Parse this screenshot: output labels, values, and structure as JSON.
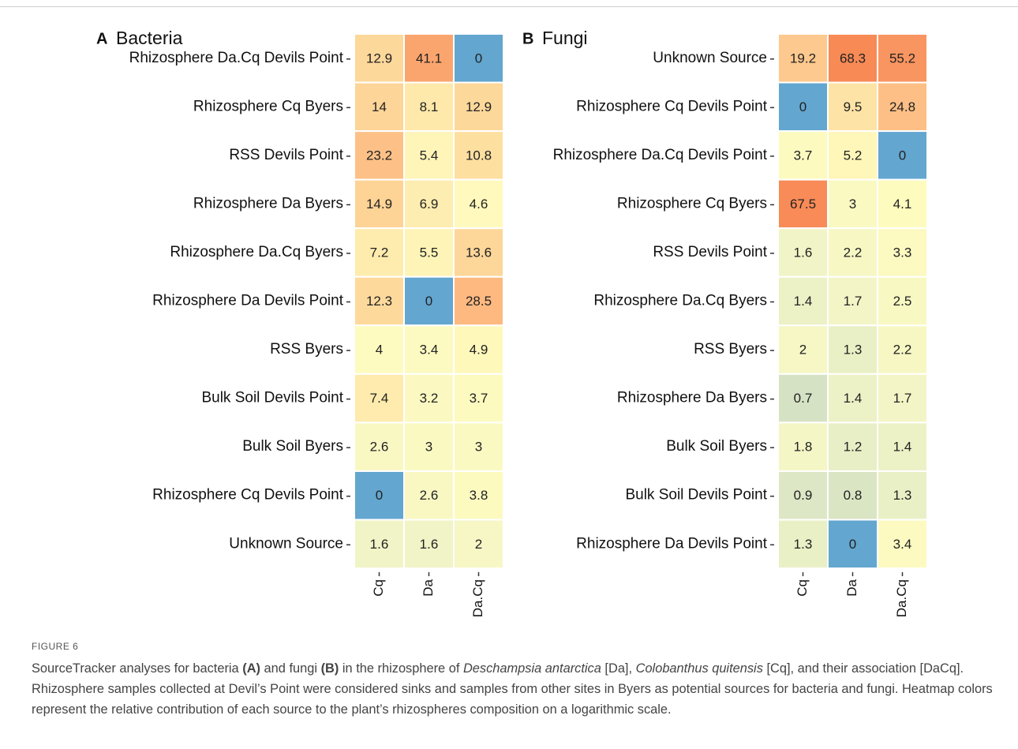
{
  "chart_data": [
    {
      "type": "heatmap",
      "panel": "A",
      "title": "Bacteria",
      "rows": [
        "Rhizosphere Da.Cq Devils Point",
        "Rhizosphere Cq Byers",
        "RSS Devils Point",
        "Rhizosphere Da Byers",
        "Rhizosphere Da.Cq Byers",
        "Rhizosphere Da Devils Point",
        "RSS Byers",
        "Bulk Soil Devils Point",
        "Bulk Soil Byers",
        "Rhizosphere Cq Devils Point",
        "Unknown Source"
      ],
      "columns": [
        "Cq",
        "Da",
        "Da.Cq"
      ],
      "values": [
        [
          12.9,
          41.1,
          0
        ],
        [
          14,
          8.1,
          12.9
        ],
        [
          23.2,
          5.4,
          10.8
        ],
        [
          14.9,
          6.9,
          4.6
        ],
        [
          7.2,
          5.5,
          13.6
        ],
        [
          12.3,
          0,
          28.5
        ],
        [
          4,
          3.4,
          4.9
        ],
        [
          7.4,
          3.2,
          3.7
        ],
        [
          2.6,
          3,
          3
        ],
        [
          0,
          2.6,
          3.8
        ],
        [
          1.6,
          1.6,
          2
        ]
      ],
      "log_color_scale": true,
      "colors": [
        "#d6e2c4",
        "#f4f6c6",
        "#fffbbf",
        "#fddfa0",
        "#fdbb82",
        "#f88a56"
      ],
      "zero_color": "#63a6cf"
    },
    {
      "type": "heatmap",
      "panel": "B",
      "title": "Fungi",
      "rows": [
        "Unknown Source",
        "Rhizosphere Cq Devils Point",
        "Rhizosphere Da.Cq Devils Point",
        "Rhizosphere Cq Byers",
        "RSS Devils Point",
        "Rhizosphere Da.Cq Byers",
        "RSS Byers",
        "Rhizosphere Da Byers",
        "Bulk Soil Byers",
        "Bulk Soil Devils Point",
        "Rhizosphere Da Devils Point"
      ],
      "columns": [
        "Cq",
        "Da",
        "Da.Cq"
      ],
      "values": [
        [
          19.2,
          68.3,
          55.2
        ],
        [
          0,
          9.5,
          24.8
        ],
        [
          3.7,
          5.2,
          0
        ],
        [
          67.5,
          3,
          4.1
        ],
        [
          1.6,
          2.2,
          3.3
        ],
        [
          1.4,
          1.7,
          2.5
        ],
        [
          2,
          1.3,
          2.2
        ],
        [
          0.7,
          1.4,
          1.7
        ],
        [
          1.8,
          1.2,
          1.4
        ],
        [
          0.9,
          0.8,
          1.3
        ],
        [
          1.3,
          0,
          3.4
        ]
      ],
      "log_color_scale": true,
      "colors": [
        "#d6e2c4",
        "#f4f6c6",
        "#fffbbf",
        "#fddfa0",
        "#fdbb82",
        "#f88a56"
      ],
      "zero_color": "#63a6cf"
    }
  ],
  "caption": {
    "label": "FIGURE 6",
    "parts": [
      "SourceTracker analyses for bacteria ",
      "(A)",
      " and fungi ",
      "(B)",
      " in the rhizosphere of ",
      "Deschampsia antarctica",
      " [Da], ",
      "Colobanthus quitensis",
      " [Cq], and their association [DaCq]. Rhizosphere samples collected at Devil’s Point were considered sinks and samples from other sites in Byers as potential sources for bacteria and fungi. Heatmap colors represent the relative contribution of each source to the plant’s rhizospheres composition on a logarithmic scale."
    ]
  }
}
